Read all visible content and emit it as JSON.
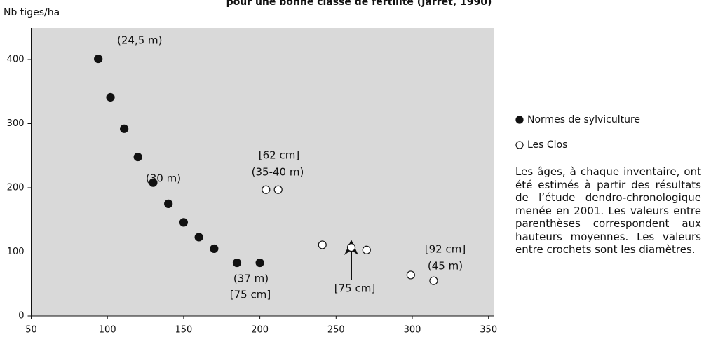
{
  "chart_data": {
    "type": "scatter",
    "title": "pour une bonne classe de fertilité (Jarret, 1990)",
    "y_label": "Nb tiges/ha",
    "xlim": [
      50,
      350
    ],
    "ylim": [
      0,
      400
    ],
    "xticks": [
      50,
      100,
      150,
      200,
      250,
      300,
      350
    ],
    "yticks": [
      0,
      100,
      200,
      300,
      400
    ],
    "background": "#d9d9d9",
    "series": [
      {
        "name": "Normes de sylviculture",
        "color": "#111111",
        "filled": true,
        "x": [
          94,
          102,
          111,
          120,
          130,
          140,
          150,
          160,
          170,
          185,
          200
        ],
        "values": [
          401,
          341,
          292,
          248,
          208,
          175,
          146,
          123,
          105,
          83,
          83
        ]
      },
      {
        "name": "Les Clos",
        "color": "#111111",
        "filled": false,
        "x": [
          204,
          212,
          241,
          260,
          270,
          299,
          314
        ],
        "values": [
          197,
          197,
          111,
          107,
          103,
          64,
          55
        ]
      }
    ],
    "annotations": [
      "(24,5 m)",
      "(30 m)",
      "[62 cm]",
      "(35-40 m)",
      "(37 m)",
      "[75 cm]",
      "[75 cm]",
      "[92 cm]",
      "(45 m)"
    ],
    "note": "Les âges, à chaque inventaire, ont été estimés à partir des résultats de l’étude dendro-chronologique menée en 2001. Les valeurs entre parenthèses correspondent aux hauteurs moyennes. Les valeurs entre crochets sont les diamètres."
  }
}
